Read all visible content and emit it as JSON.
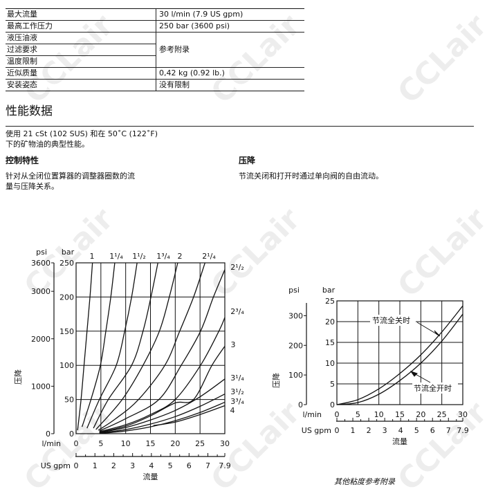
{
  "spec_table": [
    {
      "label": "最大流量",
      "value": "30 l/min (7.9 US gpm)"
    },
    {
      "label": "最高工作压力",
      "value": "250 bar (3600 psi)"
    },
    {
      "label": "液压油液",
      "value": "参考附录"
    },
    {
      "label": "过滤要求",
      "value": ""
    },
    {
      "label": "温度限制",
      "value": ""
    },
    {
      "label": "近似质量",
      "value": "0,42 kg (0.92 lb.)"
    },
    {
      "label": "安装姿态",
      "value": "没有限制"
    }
  ],
  "performance": {
    "title": "性能数据",
    "intro_line1": "使用 21 cSt (102 SUS) 和在 50˚C (122˚F)",
    "intro_line2": "下的矿物油的典型性能。",
    "control": {
      "title": "控制特性",
      "line1": "针对从全闭位置算器的调整器圈数的流",
      "line2": "量与压降关系。"
    },
    "pressure_drop": {
      "title": "压降",
      "line1": "节流关闭和打开时通过单向阀的自由流动。"
    }
  },
  "footnote": "其他粘度参考附录",
  "watermark": "CCLair",
  "chart_data": [
    {
      "type": "line",
      "xlabel": "流量",
      "ylabel": "压降",
      "x_unit": "l/min",
      "x2_unit": "US gpm",
      "y_unit": "bar",
      "y2_unit": "psi",
      "xlim": [
        0,
        30
      ],
      "ylim": [
        0,
        250
      ],
      "y2lim": [
        0,
        3600
      ],
      "x2lim": [
        0,
        7.9
      ],
      "grid": true,
      "x_ticks": [
        "0",
        "5",
        "10",
        "15",
        "20",
        "25",
        "30"
      ],
      "x2_ticks": [
        "0",
        "1",
        "2",
        "3",
        "4",
        "5",
        "6",
        "7",
        "7.9"
      ],
      "y_ticks": [
        "0",
        "50",
        "100",
        "150",
        "200",
        "250"
      ],
      "y2_ticks": [
        "0",
        "1000",
        "2000",
        "3000",
        "3600"
      ],
      "series": [
        {
          "name": "1",
          "points": [
            [
              0.3,
              5
            ],
            [
              1,
              50
            ],
            [
              1.6,
              100
            ],
            [
              2.2,
              150
            ],
            [
              2.8,
              200
            ],
            [
              3.3,
              250
            ]
          ]
        },
        {
          "name": "1¹/₄",
          "points": [
            [
              1.2,
              10
            ],
            [
              3,
              50
            ],
            [
              4.9,
              100
            ],
            [
              6,
              150
            ],
            [
              7,
              200
            ],
            [
              7.8,
              250
            ]
          ]
        },
        {
          "name": "1¹/₂",
          "points": [
            [
              2.2,
              8
            ],
            [
              4.7,
              50
            ],
            [
              8.1,
              100
            ],
            [
              9.8,
              150
            ],
            [
              11.2,
              200
            ],
            [
              12.3,
              250
            ]
          ]
        },
        {
          "name": "1³/₄",
          "points": [
            [
              3.5,
              8
            ],
            [
              6.5,
              50
            ],
            [
              11.2,
              100
            ],
            [
              13.5,
              150
            ],
            [
              15.1,
              200
            ],
            [
              16.5,
              250
            ]
          ]
        },
        {
          "name": "2",
          "points": [
            [
              4,
              6
            ],
            [
              9.3,
              50
            ],
            [
              13.5,
              100
            ],
            [
              16.8,
              150
            ],
            [
              18.8,
              200
            ],
            [
              20.5,
              250
            ]
          ]
        },
        {
          "name": "2¹/₄",
          "points": [
            [
              4.5,
              5
            ],
            [
              8,
              22
            ],
            [
              12.6,
              50
            ],
            [
              17.9,
              100
            ],
            [
              20.9,
              150
            ],
            [
              23.7,
              200
            ],
            [
              26,
              250
            ]
          ]
        },
        {
          "name": "2¹/₂",
          "points": [
            [
              4.7,
              4
            ],
            [
              10,
              22
            ],
            [
              16.7,
              50
            ],
            [
              21.2,
              100
            ],
            [
              25.1,
              150
            ],
            [
              27.7,
              200
            ],
            [
              30,
              240
            ]
          ]
        },
        {
          "name": "2³/₄",
          "points": [
            [
              4.7,
              3
            ],
            [
              10,
              13
            ],
            [
              15,
              28
            ],
            [
              20,
              50
            ],
            [
              25.1,
              100
            ],
            [
              28.8,
              150
            ],
            [
              30,
              170
            ]
          ]
        },
        {
          "name": "3",
          "points": [
            [
              4.7,
              2
            ],
            [
              10,
              11
            ],
            [
              15,
              26
            ],
            [
              20,
              45
            ],
            [
              23.7,
              50
            ],
            [
              27.4,
              100
            ],
            [
              30,
              128
            ]
          ]
        },
        {
          "name": "3¹/₄",
          "points": [
            [
              4.7,
              1.5
            ],
            [
              10,
              9
            ],
            [
              15,
              20
            ],
            [
              20,
              34
            ],
            [
              25,
              54
            ],
            [
              30,
              80
            ]
          ]
        },
        {
          "name": "3¹/₂",
          "points": [
            [
              4.7,
              1
            ],
            [
              10,
              6
            ],
            [
              15,
              14
            ],
            [
              20,
              25
            ],
            [
              25,
              40
            ],
            [
              30,
              58
            ]
          ]
        },
        {
          "name": "3³/₄",
          "points": [
            [
              5,
              0.5
            ],
            [
              10,
              4
            ],
            [
              15,
              10
            ],
            [
              20,
              19
            ],
            [
              25,
              31
            ],
            [
              30,
              46
            ]
          ]
        },
        {
          "name": "4",
          "points": [
            [
              15.6,
              12
            ],
            [
              20,
              17
            ],
            [
              25,
              28
            ],
            [
              30,
              41
            ]
          ]
        }
      ]
    },
    {
      "type": "line",
      "xlabel": "流量",
      "ylabel": "压降",
      "x_unit": "l/min",
      "x2_unit": "US gpm",
      "y_unit": "bar",
      "y2_unit": "psi",
      "xlim": [
        0,
        30
      ],
      "ylim": [
        0,
        25
      ],
      "y2lim": [
        0,
        350
      ],
      "x2lim": [
        0,
        7.9
      ],
      "grid": true,
      "x_ticks": [
        "0",
        "5",
        "10",
        "15",
        "20",
        "25",
        "30"
      ],
      "x2_ticks": [
        "0",
        "1",
        "2",
        "3",
        "4",
        "5",
        "6",
        "7",
        "7.9"
      ],
      "y_ticks": [
        "0",
        "5",
        "10",
        "15",
        "20",
        "25"
      ],
      "y2_ticks": [
        "0",
        "100",
        "200",
        "300"
      ],
      "series": [
        {
          "name": "节流全关时",
          "points": [
            [
              0,
              0
            ],
            [
              5,
              1.2
            ],
            [
              10,
              3.8
            ],
            [
              15,
              7.5
            ],
            [
              20,
              12
            ],
            [
              25,
              17.5
            ],
            [
              30,
              23.8
            ]
          ]
        },
        {
          "name": "节流全开时",
          "points": [
            [
              0,
              0
            ],
            [
              5,
              0.5
            ],
            [
              10,
              2.5
            ],
            [
              15,
              5.8
            ],
            [
              20,
              10
            ],
            [
              25,
              15.3
            ],
            [
              30,
              21.8
            ]
          ]
        }
      ]
    }
  ]
}
